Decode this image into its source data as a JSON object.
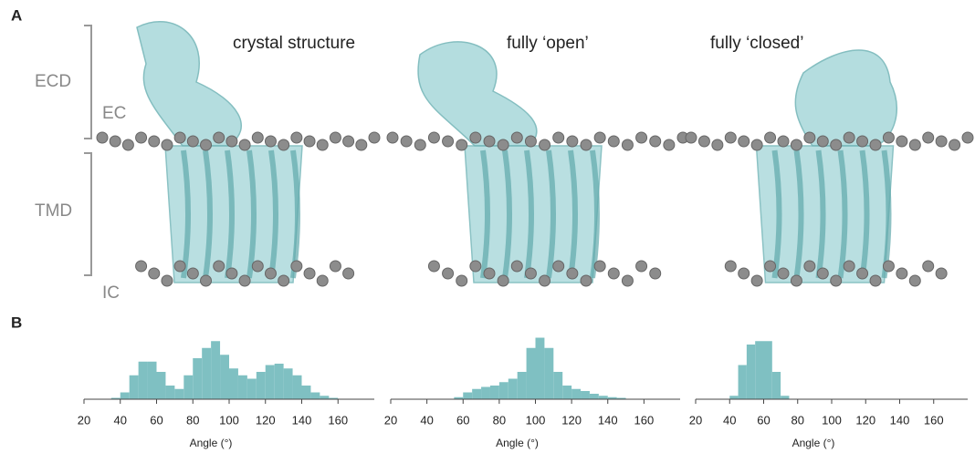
{
  "panel_labels": [
    "A",
    "B"
  ],
  "region_labels": {
    "ecd": "ECD",
    "ec": "EC",
    "tmd": "TMD",
    "ic": "IC"
  },
  "structure_titles": [
    "crystal structure",
    "fully ‘open’",
    "fully ‘closed’"
  ],
  "chart_data": [
    {
      "type": "histogram",
      "x_label": "Angle (°)",
      "color": "#7fc0c2",
      "bins": [
        35,
        40,
        45,
        50,
        55,
        60,
        65,
        70,
        75,
        80,
        85,
        90,
        95,
        100,
        105,
        110,
        115,
        120,
        125,
        130,
        135,
        140,
        145,
        150,
        155,
        160
      ],
      "values": [
        2,
        10,
        35,
        55,
        55,
        40,
        20,
        15,
        35,
        60,
        75,
        85,
        65,
        45,
        35,
        30,
        40,
        50,
        52,
        45,
        35,
        20,
        10,
        5,
        2
      ],
      "xlim": [
        20,
        180
      ],
      "xticks": [
        20,
        40,
        60,
        80,
        100,
        120,
        140,
        160
      ],
      "ylim": [
        0,
        100
      ]
    },
    {
      "type": "histogram",
      "x_label": "Angle (°)",
      "color": "#7fc0c2",
      "bins": [
        55,
        60,
        65,
        70,
        75,
        80,
        85,
        90,
        95,
        100,
        105,
        110,
        115,
        120,
        125,
        130,
        135,
        140,
        145,
        150
      ],
      "values": [
        3,
        10,
        15,
        18,
        20,
        25,
        30,
        40,
        75,
        90,
        75,
        40,
        20,
        15,
        12,
        8,
        5,
        3,
        2
      ],
      "xlim": [
        20,
        180
      ],
      "xticks": [
        20,
        40,
        60,
        80,
        100,
        120,
        140,
        160
      ],
      "ylim": [
        0,
        100
      ]
    },
    {
      "type": "histogram",
      "x_label": "Angle (°)",
      "color": "#7fc0c2",
      "bins": [
        40,
        45,
        50,
        55,
        60,
        65,
        70,
        75
      ],
      "values": [
        5,
        50,
        80,
        85,
        85,
        40,
        5
      ],
      "xlim": [
        20,
        180
      ],
      "xticks": [
        20,
        40,
        60,
        80,
        100,
        120,
        140,
        160
      ],
      "ylim": [
        0,
        100
      ]
    }
  ]
}
